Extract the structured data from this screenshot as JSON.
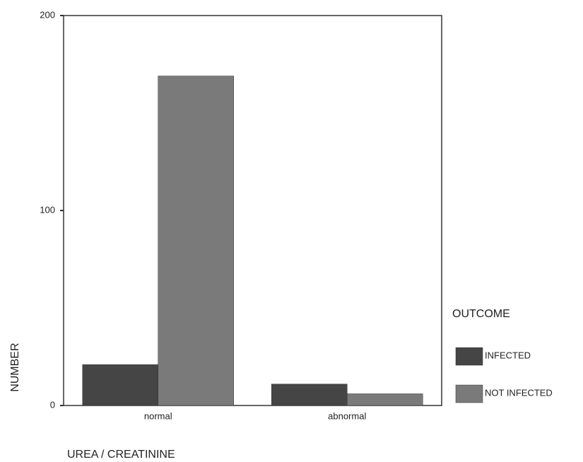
{
  "chart_data": {
    "type": "bar",
    "x_label": "UREA / CREATININE",
    "y_label": "NUMBER",
    "legend_title": "OUTCOME",
    "categories": [
      "normal",
      "abnormal"
    ],
    "series": [
      {
        "name": "INFECTED",
        "color": "#454545",
        "values": [
          21,
          11
        ]
      },
      {
        "name": "NOT INFECTED",
        "color": "#7a7a7a",
        "values": [
          169,
          6
        ]
      }
    ],
    "ylim": [
      0,
      200
    ],
    "yticks": [
      0,
      100,
      200
    ]
  }
}
